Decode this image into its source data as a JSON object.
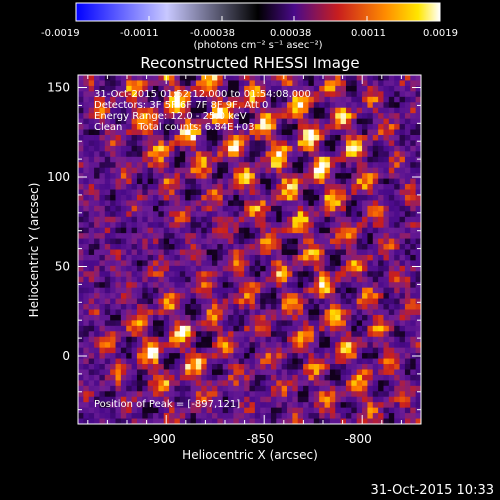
{
  "colorbar": {
    "tick_labels": [
      "-0.0019",
      "-0.0011",
      "-0.00038",
      "0.00038",
      "0.0011",
      "0.0019"
    ],
    "unit_label": "(photons cm⁻² s⁻¹ asec⁻²)"
  },
  "timestamp": "31-Oct-2015 10:33",
  "chart_data": {
    "type": "heatmap",
    "title": "Reconstructed RHESSI Image",
    "xlabel": "Heliocentric X (arcsec)",
    "ylabel": "Heliocentric Y (arcsec)",
    "xlim": [
      -945,
      -770
    ],
    "ylim": [
      -38,
      157
    ],
    "x_ticks": [
      -900,
      -850,
      -800
    ],
    "y_ticks": [
      0,
      50,
      100,
      150
    ],
    "x_tick_labels": [
      "-900",
      "-850",
      "-800"
    ],
    "y_tick_labels": [
      "0",
      "50",
      "100",
      "150"
    ],
    "value_range": [
      -0.0019,
      0.0019
    ],
    "colormap": [
      "#0000ff",
      "#ffffff",
      "#000000",
      "#4a0a8a",
      "#c81e1e",
      "#ff8c00",
      "#ffe600",
      "#ffffff"
    ],
    "annotations": [
      "31-Oct-2015 01:52:12.000 to 01:54:08.000",
      "Detectors: 3F 5F 6F 7F 8F 9F, Att 0",
      "Energy Range: 12.0 - 25.0 keV",
      "Clean     Total counts: 6.84E+03"
    ],
    "peak_label": "Position of Peak = [-897,121]",
    "peak_position": [
      -897,
      121
    ]
  }
}
